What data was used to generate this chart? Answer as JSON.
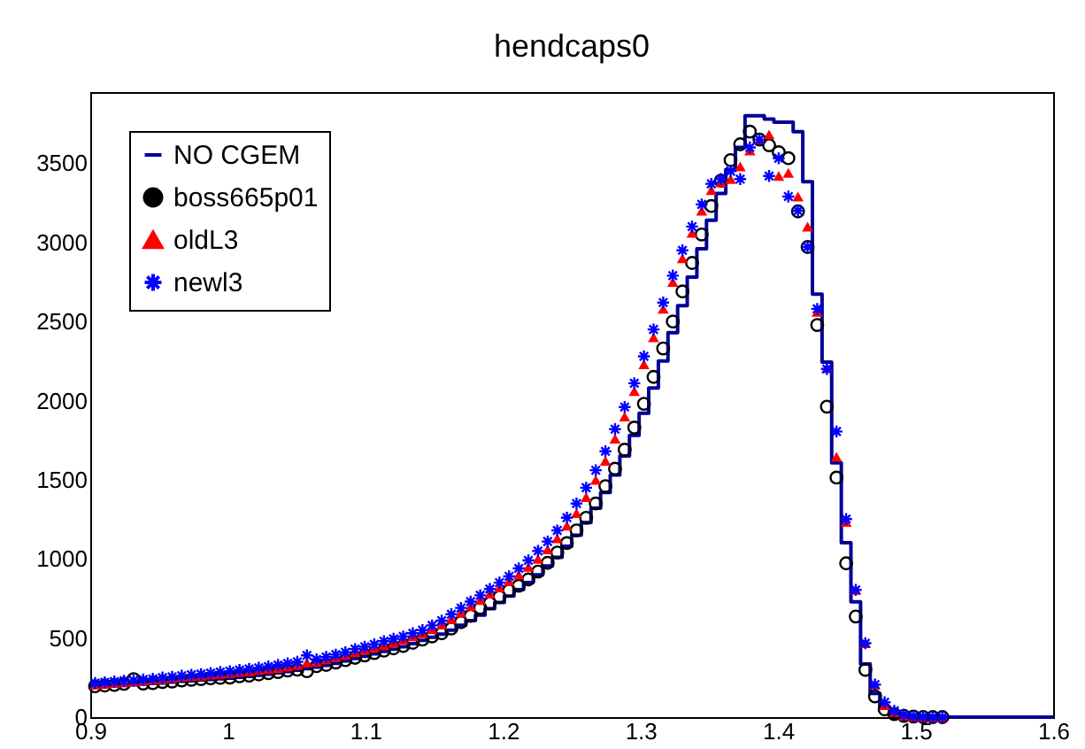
{
  "chart_data": {
    "type": "histogram",
    "title": "hendcaps0",
    "bins": [
      0.9,
      0.907,
      0.914,
      0.921,
      0.928,
      0.935,
      0.942,
      0.949,
      0.956,
      0.963,
      0.97,
      0.977,
      0.984,
      0.991,
      0.998,
      1.005,
      1.012,
      1.019,
      1.026,
      1.033,
      1.04,
      1.047,
      1.054,
      1.061,
      1.068,
      1.075,
      1.082,
      1.089,
      1.096,
      1.103,
      1.11,
      1.117,
      1.124,
      1.131,
      1.138,
      1.145,
      1.152,
      1.159,
      1.166,
      1.173,
      1.18,
      1.187,
      1.194,
      1.201,
      1.208,
      1.215,
      1.222,
      1.229,
      1.236,
      1.243,
      1.25,
      1.257,
      1.264,
      1.271,
      1.278,
      1.285,
      1.292,
      1.299,
      1.306,
      1.313,
      1.32,
      1.327,
      1.334,
      1.341,
      1.348,
      1.355,
      1.362,
      1.369,
      1.376,
      1.383,
      1.39,
      1.397,
      1.404,
      1.411,
      1.418,
      1.425,
      1.432,
      1.439,
      1.446,
      1.453,
      1.46,
      1.467,
      1.474,
      1.481,
      1.488,
      1.495,
      1.502,
      1.509,
      1.516,
      1.523,
      1.53,
      1.537,
      1.544,
      1.551,
      1.558,
      1.565,
      1.572,
      1.579,
      1.586,
      1.593,
      1.6
    ],
    "x": [
      0.9035,
      0.9105,
      0.9175,
      0.9245,
      0.9315,
      0.9385,
      0.9455,
      0.9525,
      0.9595,
      0.9665,
      0.9735,
      0.9805,
      0.9875,
      0.9945,
      1.0015,
      1.0085,
      1.0155,
      1.0225,
      1.0295,
      1.0365,
      1.0435,
      1.0505,
      1.0575,
      1.0645,
      1.0715,
      1.0785,
      1.0855,
      1.0925,
      1.0995,
      1.1065,
      1.1135,
      1.1205,
      1.1275,
      1.1345,
      1.1415,
      1.1485,
      1.1555,
      1.1625,
      1.1695,
      1.1765,
      1.1835,
      1.1905,
      1.1975,
      1.2045,
      1.2115,
      1.2185,
      1.2255,
      1.2325,
      1.2395,
      1.2465,
      1.2535,
      1.2605,
      1.2675,
      1.2745,
      1.2815,
      1.2885,
      1.2955,
      1.3025,
      1.3095,
      1.3165,
      1.3235,
      1.3305,
      1.3375,
      1.3445,
      1.3515,
      1.3585,
      1.3655,
      1.3725,
      1.3795,
      1.3865,
      1.3935,
      1.4005,
      1.4075,
      1.4145,
      1.4215,
      1.4285,
      1.4355,
      1.4425,
      1.4495,
      1.4565,
      1.4635,
      1.4705,
      1.4775,
      1.4845,
      1.4915,
      1.4985,
      1.5055,
      1.5125,
      1.5195
    ],
    "series": [
      {
        "name": "NO CGEM",
        "color": "#000099",
        "values": [
          190,
          193,
          197,
          200,
          204,
          208,
          212,
          216,
          221,
          226,
          230,
          235,
          238,
          242,
          246,
          252,
          258,
          265,
          272,
          280,
          288,
          297,
          306,
          316,
          327,
          340,
          355,
          370,
          385,
          400,
          415,
          430,
          445,
          465,
          485,
          505,
          525,
          550,
          580,
          610,
          645,
          685,
          725,
          765,
          805,
          850,
          900,
          955,
          1010,
          1080,
          1150,
          1230,
          1320,
          1420,
          1530,
          1650,
          1780,
          1920,
          2080,
          2250,
          2430,
          2600,
          2780,
          2960,
          3140,
          3310,
          3460,
          3600,
          3800,
          3800,
          3780,
          3760,
          3760,
          3700,
          3383,
          2673,
          2243,
          1607,
          1102,
          729,
          336,
          150,
          56,
          19,
          5,
          0,
          0,
          0,
          0,
          0,
          0,
          0,
          0,
          0,
          0,
          0,
          0,
          0,
          0,
          0
        ]
      },
      {
        "name": "boss665p01",
        "type": "scatter",
        "marker": "circle",
        "color": "#000000",
        "values": [
          195,
          200,
          203,
          210,
          240,
          212,
          215,
          222,
          225,
          232,
          236,
          240,
          245,
          248,
          250,
          258,
          262,
          270,
          278,
          285,
          294,
          300,
          290,
          322,
          330,
          345,
          360,
          375,
          390,
          405,
          420,
          435,
          450,
          470,
          490,
          510,
          530,
          560,
          600,
          640,
          690,
          720,
          760,
          800,
          830,
          870,
          920,
          975,
          1040,
          1100,
          1180,
          1260,
          1350,
          1460,
          1570,
          1690,
          1830,
          1980,
          2150,
          2330,
          2500,
          2690,
          2870,
          3050,
          3230,
          3390,
          3520,
          3620,
          3700,
          3650,
          3614,
          3570,
          3532,
          3196,
          2971,
          2478,
          1962,
          1514,
          972,
          636,
          299,
          131,
          49,
          19,
          8,
          3,
          1,
          0,
          0
        ]
      },
      {
        "name": "oldL3",
        "type": "scatter",
        "marker": "triangle",
        "color": "#ff0000",
        "values": [
          205,
          210,
          215,
          222,
          225,
          230,
          235,
          240,
          248,
          255,
          258,
          262,
          268,
          272,
          278,
          285,
          290,
          298,
          305,
          310,
          320,
          330,
          345,
          350,
          365,
          380,
          395,
          410,
          425,
          440,
          455,
          470,
          490,
          510,
          530,
          555,
          585,
          620,
          660,
          700,
          740,
          780,
          820,
          860,
          900,
          950,
          1000,
          1060,
          1130,
          1210,
          1290,
          1390,
          1500,
          1620,
          1760,
          1900,
          2060,
          2230,
          2400,
          2580,
          2750,
          2900,
          3060,
          3200,
          3330,
          3380,
          3400,
          3480,
          3580,
          3650,
          3682,
          3420,
          3439,
          3290,
          3100,
          2561,
          2206,
          1645,
          1233,
          804,
          467,
          206,
          75,
          30,
          10,
          3,
          0,
          0,
          0
        ]
      },
      {
        "name": "newl3",
        "type": "scatter",
        "marker": "cross",
        "color": "#0000ff",
        "values": [
          215,
          220,
          225,
          230,
          232,
          238,
          242,
          250,
          255,
          262,
          268,
          272,
          278,
          285,
          290,
          298,
          305,
          312,
          320,
          330,
          340,
          350,
          390,
          365,
          380,
          395,
          410,
          430,
          445,
          460,
          480,
          495,
          510,
          530,
          550,
          580,
          610,
          650,
          690,
          730,
          770,
          810,
          850,
          890,
          940,
          990,
          1050,
          1110,
          1180,
          1260,
          1350,
          1450,
          1560,
          1680,
          1820,
          1960,
          2110,
          2280,
          2450,
          2620,
          2790,
          2950,
          3100,
          3240,
          3370,
          3400,
          3450,
          3400,
          3600,
          3650,
          3420,
          3532,
          3290,
          3200,
          2971,
          2580,
          2200,
          1805,
          1252,
          804,
          467,
          206,
          94,
          40,
          15,
          5,
          2,
          0,
          0
        ]
      }
    ],
    "xlim": [
      0.9,
      1.6
    ],
    "xticks": [
      0.9,
      1,
      1.1,
      1.2,
      1.3,
      1.4,
      1.5,
      1.6
    ],
    "ylim": [
      0,
      3950
    ],
    "yticks": [
      0,
      500,
      1000,
      1500,
      2000,
      2500,
      3000,
      3500
    ],
    "grid": false,
    "legend": "top left"
  }
}
